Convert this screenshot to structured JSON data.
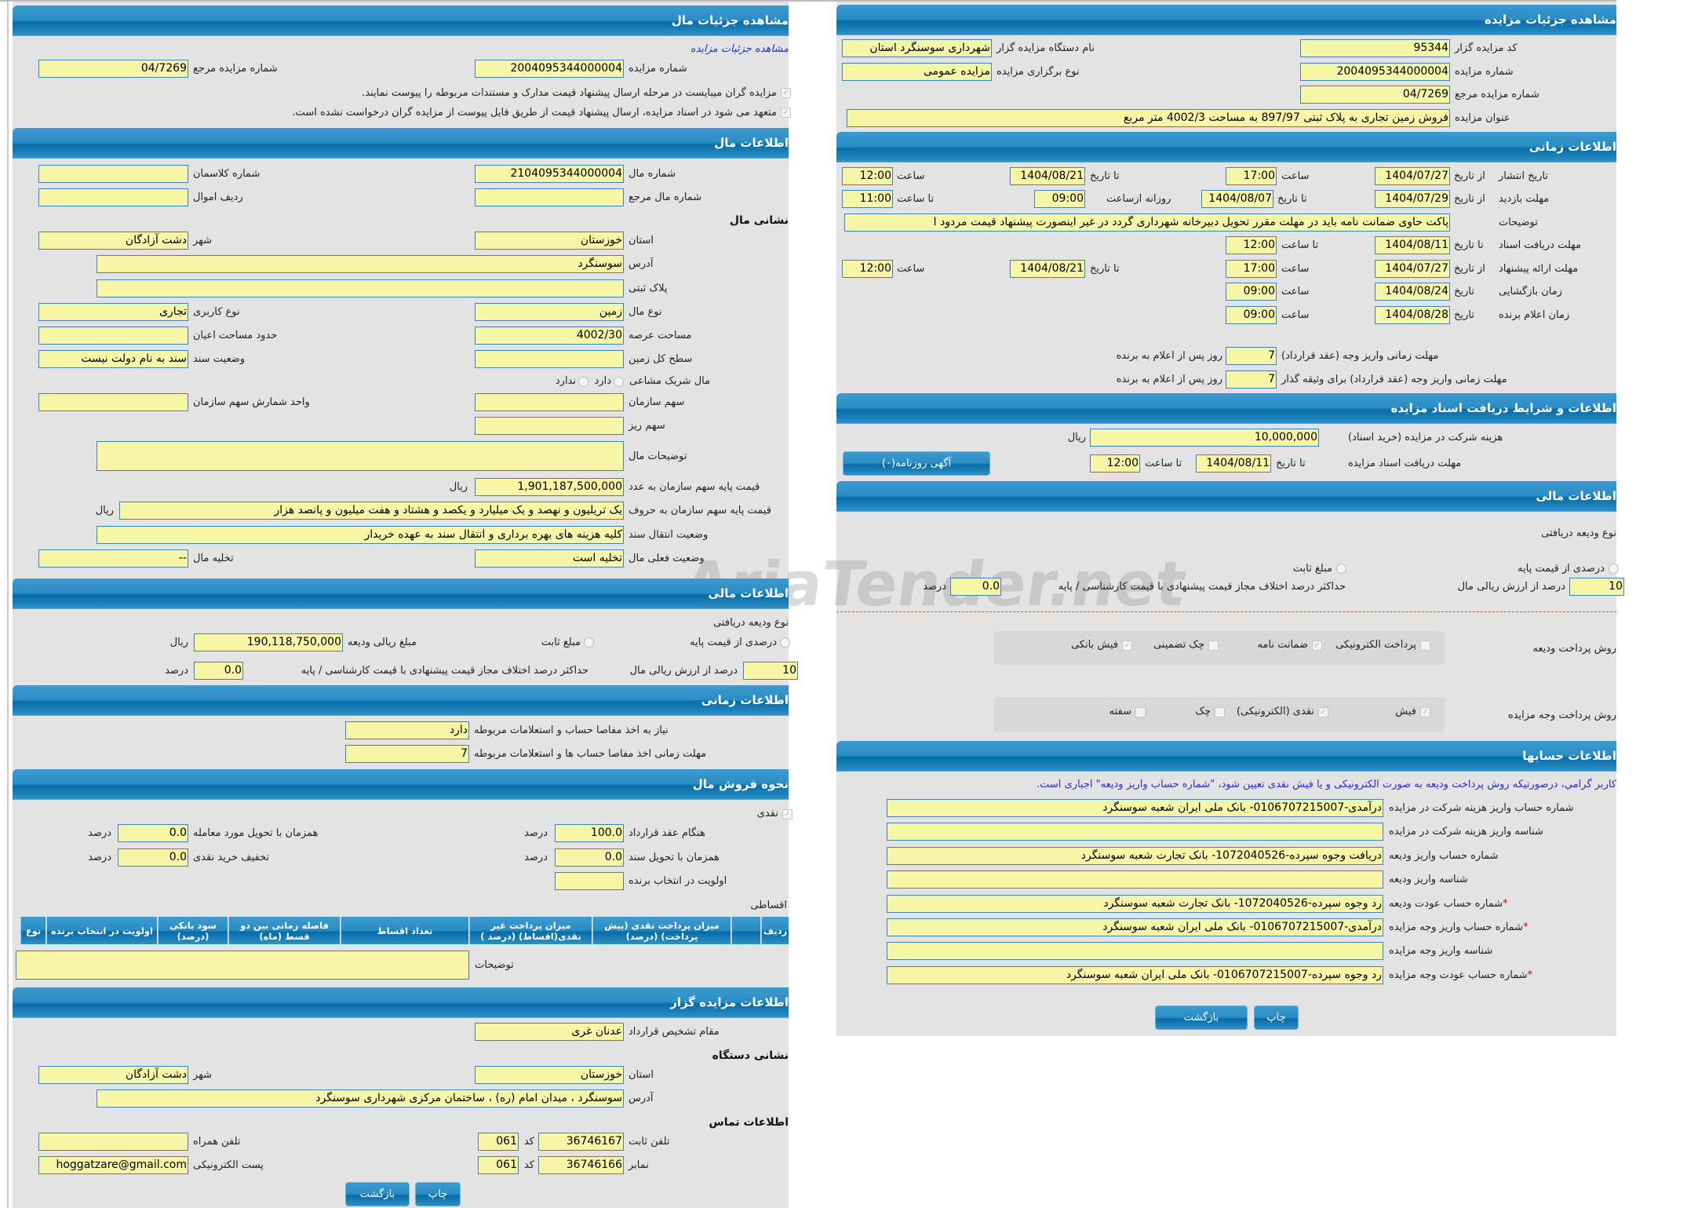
{
  "watermark": "AriaTender.net",
  "left": {
    "title": "مشاهده جزئیات مال",
    "link": "مشاهده جزئیات مزایده",
    "auction_no": {
      "label": "شماره مزایده",
      "value": "2004095344000004"
    },
    "ref_no": {
      "label": "شماره مزایده مرجع",
      "value": "04/7269"
    },
    "notices": [
      "مزایده گران میبایست در مرحله ارسال پیشنهاد قیمت مدارک و مستندات مربوطه را پیوست نمایند.",
      "متعهد می شود در اسناد مزایده، ارسال پیشنهاد قیمت از طریق فایل پیوست از مزایده گران درخواست نشده است."
    ],
    "property": {
      "title": "اطلاعات مال",
      "number": {
        "label": "شماره مال",
        "value": "2104095344000004"
      },
      "class_no": {
        "label": "شماره کلاسمان",
        "value": ""
      },
      "ref_number": {
        "label": "شماره مال مرجع",
        "value": ""
      },
      "asset_row": {
        "label": "ردیف اموال",
        "value": ""
      },
      "address_title": "نشانی مال",
      "province": {
        "label": "استان",
        "value": "خوزستان"
      },
      "city": {
        "label": "شهر",
        "value": "دشت آزادگان"
      },
      "address": {
        "label": "آدرس",
        "value": "سوسنگرد"
      },
      "plaque": {
        "label": "پلاک ثبتی",
        "value": ""
      },
      "type": {
        "label": "نوع مال",
        "value": "زمین"
      },
      "usage": {
        "label": "نوع کاربری",
        "value": "تجاری"
      },
      "area": {
        "label": "مساحت عرصه",
        "value": "4002/30"
      },
      "building_area": {
        "label": "حدود مساحت اعیان",
        "value": ""
      },
      "land_level": {
        "label": "سطح کل زمین",
        "value": ""
      },
      "deed_status": {
        "label": "وضعیت سند",
        "value": "سند به نام دولت نیست"
      },
      "shared": {
        "label": "مال شریک مشاعی",
        "yes": "دارد",
        "no": "ندارد"
      },
      "org_share": {
        "label": "سهم سازمان",
        "value": ""
      },
      "share_unit": {
        "label": "واحد شمارش سهم سازمان",
        "value": ""
      },
      "share_detail": {
        "label": "سهم ریز",
        "value": ""
      },
      "description": {
        "label": "توضیحات مال",
        "value": ""
      },
      "base_price": {
        "label": "قیمت پایه سهم سازمان به عدد",
        "value": "1,901,187,500,000",
        "unit": "ریال"
      },
      "base_price_words": {
        "label": "قیمت پایه سهم سازمان به حروف",
        "value": "یک تریلیون و نهصد و یک میلیارد و یکصد و هشتاد و هفت میلیون و پانصد هزار",
        "unit": "ریال"
      },
      "transfer_status": {
        "label": "وضعیت انتقال سند",
        "value": "کلیه هزینه های بهره برداری و انتقال سند به عهده خریدار"
      },
      "current_status": {
        "label": "وضعیت فعلی مال",
        "value": "تخلیه است"
      },
      "evacuation": {
        "label": "تخلیه مال",
        "value": "--"
      }
    },
    "financial": {
      "title": "اطلاعات مالی",
      "deposit_type": "نوع ودیعه دریافتی",
      "percent_option": "درصدی از قیمت پایه",
      "fixed_option": "مبلغ ثابت",
      "deposit_amount": {
        "label": "مبلغ ریالی ودیعه",
        "value": "190,118,750,000",
        "unit": "ریال"
      },
      "percent": {
        "label": "درصد از ارزش ریالی مال",
        "value": "10"
      },
      "max_diff": {
        "label": "حداکثر درصد اختلاف مجاز قیمت پیشنهادی با قیمت کارشناسی / پایه",
        "value": "0.0",
        "unit": "درصد"
      }
    },
    "timing": {
      "title": "اطلاعات زمانی",
      "clearance": {
        "label": "نیاز به اخذ مفاصا حساب و استعلامات مربوطه",
        "value": "دارد"
      },
      "clearance_deadline": {
        "label": "مهلت زمانی اخذ مفاصا حساب ها و استعلامات مربوطه",
        "value": "7"
      }
    },
    "sale": {
      "title": "نحوه فروش مال",
      "cash": "نقدی",
      "percent_unit": "درصد",
      "on_contract": {
        "label": "هنگام عقد قرارداد",
        "value": "100.0"
      },
      "on_delivery": {
        "label": "همزمان با تحویل مورد معامله",
        "value": "0.0"
      },
      "on_deed": {
        "label": "همزمان با تحویل سند",
        "value": "0.0"
      },
      "cash_discount": {
        "label": "تخفیف خرید نقدی",
        "value": "0.0"
      },
      "priority": {
        "label": "اولویت در انتخاب برنده",
        "value": ""
      },
      "installments": "اقساطی",
      "table_headers": [
        "ردیف",
        "",
        "میزان پرداخت نقدی (پیش پرداخت) (درصد)",
        "میزان پرداخت غیر نقدی(اقساط) (درصد )",
        "تعداد اقساط",
        "فاصله زمانی بین دو قسط (ماه)",
        "سود بانکی (درصد)",
        "اولویت در انتخاب برنده",
        "نوع"
      ],
      "description": {
        "label": "توضیحات",
        "value": ""
      }
    },
    "auctioneer": {
      "title": "اطلاعات مزایده گزار",
      "authority": {
        "label": "مقام تشخیص قرارداد",
        "value": "عدنان غری"
      },
      "address_title": "نشانی دستگاه",
      "province": {
        "label": "استان",
        "value": "خوزستان"
      },
      "city": {
        "label": "شهر",
        "value": "دشت آزادگان"
      },
      "address": {
        "label": "آدرس",
        "value": "سوسنگرد ، میدان امام (ره) ، ساختمان مرکزی شهرداری سوسنگرد"
      },
      "contact_title": "اطلاعات تماس",
      "code_label": "کد",
      "phone": {
        "label": "تلفن ثابت",
        "value": "36746167",
        "code": "061"
      },
      "mobile": {
        "label": "تلفن همراه",
        "value": ""
      },
      "fax": {
        "label": "نمابر",
        "value": "36746166",
        "code": "061"
      },
      "email": {
        "label": "پست الکترونیکی",
        "value": "hoggatzare@gmail.com"
      }
    },
    "buttons": {
      "back": "بازگشت",
      "print": "چاپ"
    }
  },
  "right": {
    "title": "مشاهده جزئیات مزایده",
    "auctioneer_code": {
      "label": "کد مزایده گزار",
      "value": "95344"
    },
    "auctioneer_name": {
      "label": "نام دستگاه مزایده گزار",
      "value": "شهرداری سوسنگرد استان"
    },
    "auction_no": {
      "label": "شماره مزایده",
      "value": "2004095344000004"
    },
    "auction_type": {
      "label": "نوع برگزاری مزایده",
      "value": "مزایده عمومی"
    },
    "ref_no": {
      "label": "شماره مزایده مرجع",
      "value": "04/7269"
    },
    "auction_title": {
      "label": "عنوان مزایده",
      "value": "فروش زمین تجاری به پلاک ثبتی 897/97 به مساحت 4002/3 متر مربع"
    },
    "timing": {
      "title": "اطلاعات زمانی",
      "labels": {
        "from_date": "از تاریخ",
        "to_date": "تا تاریخ",
        "time": "ساعت",
        "to_time": "تا ساعت",
        "daily_from": "روزانه ازساعت",
        "date": "تاریخ"
      },
      "publish": {
        "label": "تاریخ انتشار",
        "from_date": "1404/07/27",
        "from_time": "17:00",
        "to_date": "1404/08/21",
        "to_time": "12:00"
      },
      "visit": {
        "label": "مهلت بازدید",
        "from_date": "1404/07/29",
        "to_date": "1404/08/07",
        "daily_from": "09:00",
        "to_time": "11:00"
      },
      "notes": {
        "label": "توضیحات",
        "value": "پاکت حاوی ضمانت نامه باید در مهلت مقرر تحویل دبیرخانه شهرداری گردد در غیر اینصورت پیشنهاد قیمت مردود ا"
      },
      "docs_deadline": {
        "label": "مهلت دریافت اسناد",
        "to_date": "1404/08/11",
        "to_time": "12:00"
      },
      "offer": {
        "label": "مهلت ارائه پیشنهاد",
        "from_date": "1404/07/27",
        "from_time": "17:00",
        "to_date": "1404/08/21",
        "to_time": "12:00"
      },
      "opening": {
        "label": "زمان بازگشایی",
        "date": "1404/08/24",
        "time": "09:00"
      },
      "winner": {
        "label": "زمان اعلام برنده",
        "date": "1404/08/28",
        "time": "09:00"
      },
      "days_suffix": "روز پس از اعلام به برنده",
      "payment_deadline": {
        "label": "مهلت زمانی واریز وجه (عقد قرارداد)",
        "value": "7"
      },
      "guarantor_deadline": {
        "label": "مهلت زمانی واریز وجه (عقد قرارداد) برای وثیقه گذار",
        "value": "7"
      }
    },
    "docs": {
      "title": "اطلاعات و شرایط دریافت اسناد مزایده",
      "fee": {
        "label": "هزینه شرکت در مزایده (خرید اسناد)",
        "value": "10,000,000",
        "unit": "ریال"
      },
      "deadline": {
        "label": "مهلت دریافت اسناد مزایده",
        "to_date_label": "تا تاریخ",
        "to_date": "1404/08/11",
        "to_time_label": "تا ساعت",
        "to_time": "12:00"
      },
      "newspaper_button": "آگهی روزنامه(۰)"
    },
    "financial": {
      "title": "اطلاعات مالی",
      "deposit_type": "نوع ودیعه دریافتی",
      "percent_option": "درصدی از قیمت پایه",
      "fixed_option": "مبلغ ثابت",
      "percent": {
        "label": "درصد از ارزش ریالی مال",
        "value": "10"
      },
      "max_diff": {
        "label": "حداکثر درصد اختلاف مجاز قیمت پیشنهادی با قیمت کارشناسی / پایه",
        "value": "0.0",
        "unit": "درصد"
      },
      "deposit_methods": {
        "label": "روش پرداخت ودیعه",
        "options": [
          {
            "label": "پرداخت الکترونیکی",
            "checked": false
          },
          {
            "label": "ضمانت نامه",
            "checked": true
          },
          {
            "label": "چک تضمینی",
            "checked": false
          },
          {
            "label": "فیش بانکی",
            "checked": true
          }
        ]
      },
      "payment_methods": {
        "label": "روش پرداخت وجه مزایده",
        "options": [
          {
            "label": "فیش",
            "checked": true
          },
          {
            "label": "نقدی (الکترونیکی)",
            "checked": true
          },
          {
            "label": "چک",
            "checked": false
          },
          {
            "label": "سفته",
            "checked": false
          }
        ]
      }
    },
    "accounts": {
      "title": "اطلاعات حسابها",
      "note": "کاربر گرامي، درصورتیکه روش پرداخت ودیعه به صورت الکترونیکی و یا فیش نقدی تعیین شود، \"شماره حساب واریز ودیعه\" اجباری است.",
      "rows": [
        {
          "label": "شماره حساب واریز هزینه شرکت در مزایده",
          "value": "درآمدی-0106707215007- بانک ملی ایران شعبه سوسنگرد",
          "required": false
        },
        {
          "label": "شناسه واریز هزینه شرکت در مزایده",
          "value": "",
          "required": false
        },
        {
          "label": "شماره حساب واریز ودیعه",
          "value": "دریافت وجوه سپرده-1072040526- بانک تجارت شعبه سوسنگرد",
          "required": false
        },
        {
          "label": "شناسه واریز ودیعه",
          "value": "",
          "required": false
        },
        {
          "label": "شماره حساب عودت ودیعه",
          "value": "رد وجوه سپرده-1072040526- بانک تجارت شعبه سوسنگرد",
          "required": true
        },
        {
          "label": "شماره حساب واریز وجه مزایده",
          "value": "درآمدی-0106707215007- بانک ملی ایران شعبه سوسنگرد",
          "required": true
        },
        {
          "label": "شناسه واریز وجه مزایده",
          "value": "",
          "required": false
        },
        {
          "label": "شماره حساب عودت وجه مزایده",
          "value": "رد وجوه سپرده-0106707215007- بانک ملی ایران شعبه سوسنگرد",
          "required": true
        }
      ]
    },
    "buttons": {
      "back": "بازگشت",
      "print": "چاپ"
    }
  }
}
